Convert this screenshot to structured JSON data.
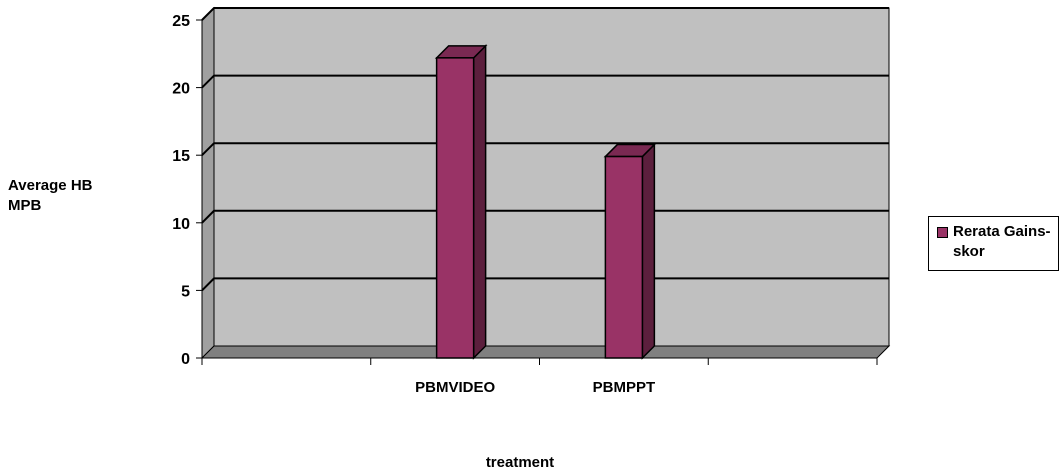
{
  "chart_data": {
    "type": "bar",
    "categories": [
      "",
      "PBMVIDEO",
      "PBMPPT",
      ""
    ],
    "series": [
      {
        "name": "Rerata Gains-skor",
        "values": [
          null,
          22.2,
          14.9,
          null
        ]
      }
    ],
    "xlabel": "treatment",
    "ylabel": "Average HB MPB",
    "ylim": [
      0,
      25
    ],
    "yticks": [
      0,
      5,
      10,
      15,
      20,
      25
    ],
    "grid": true,
    "legend": "right",
    "three_d": true
  },
  "legend": {
    "entries": [
      "Rerata Gains- skor"
    ]
  },
  "colors": {
    "bar_front": "#993366",
    "bar_side": "#5c1f3d",
    "bar_top": "#7a2952",
    "wall": "#c0c0c0",
    "wall_side": "#a0a0a0",
    "floor": "#808080"
  }
}
